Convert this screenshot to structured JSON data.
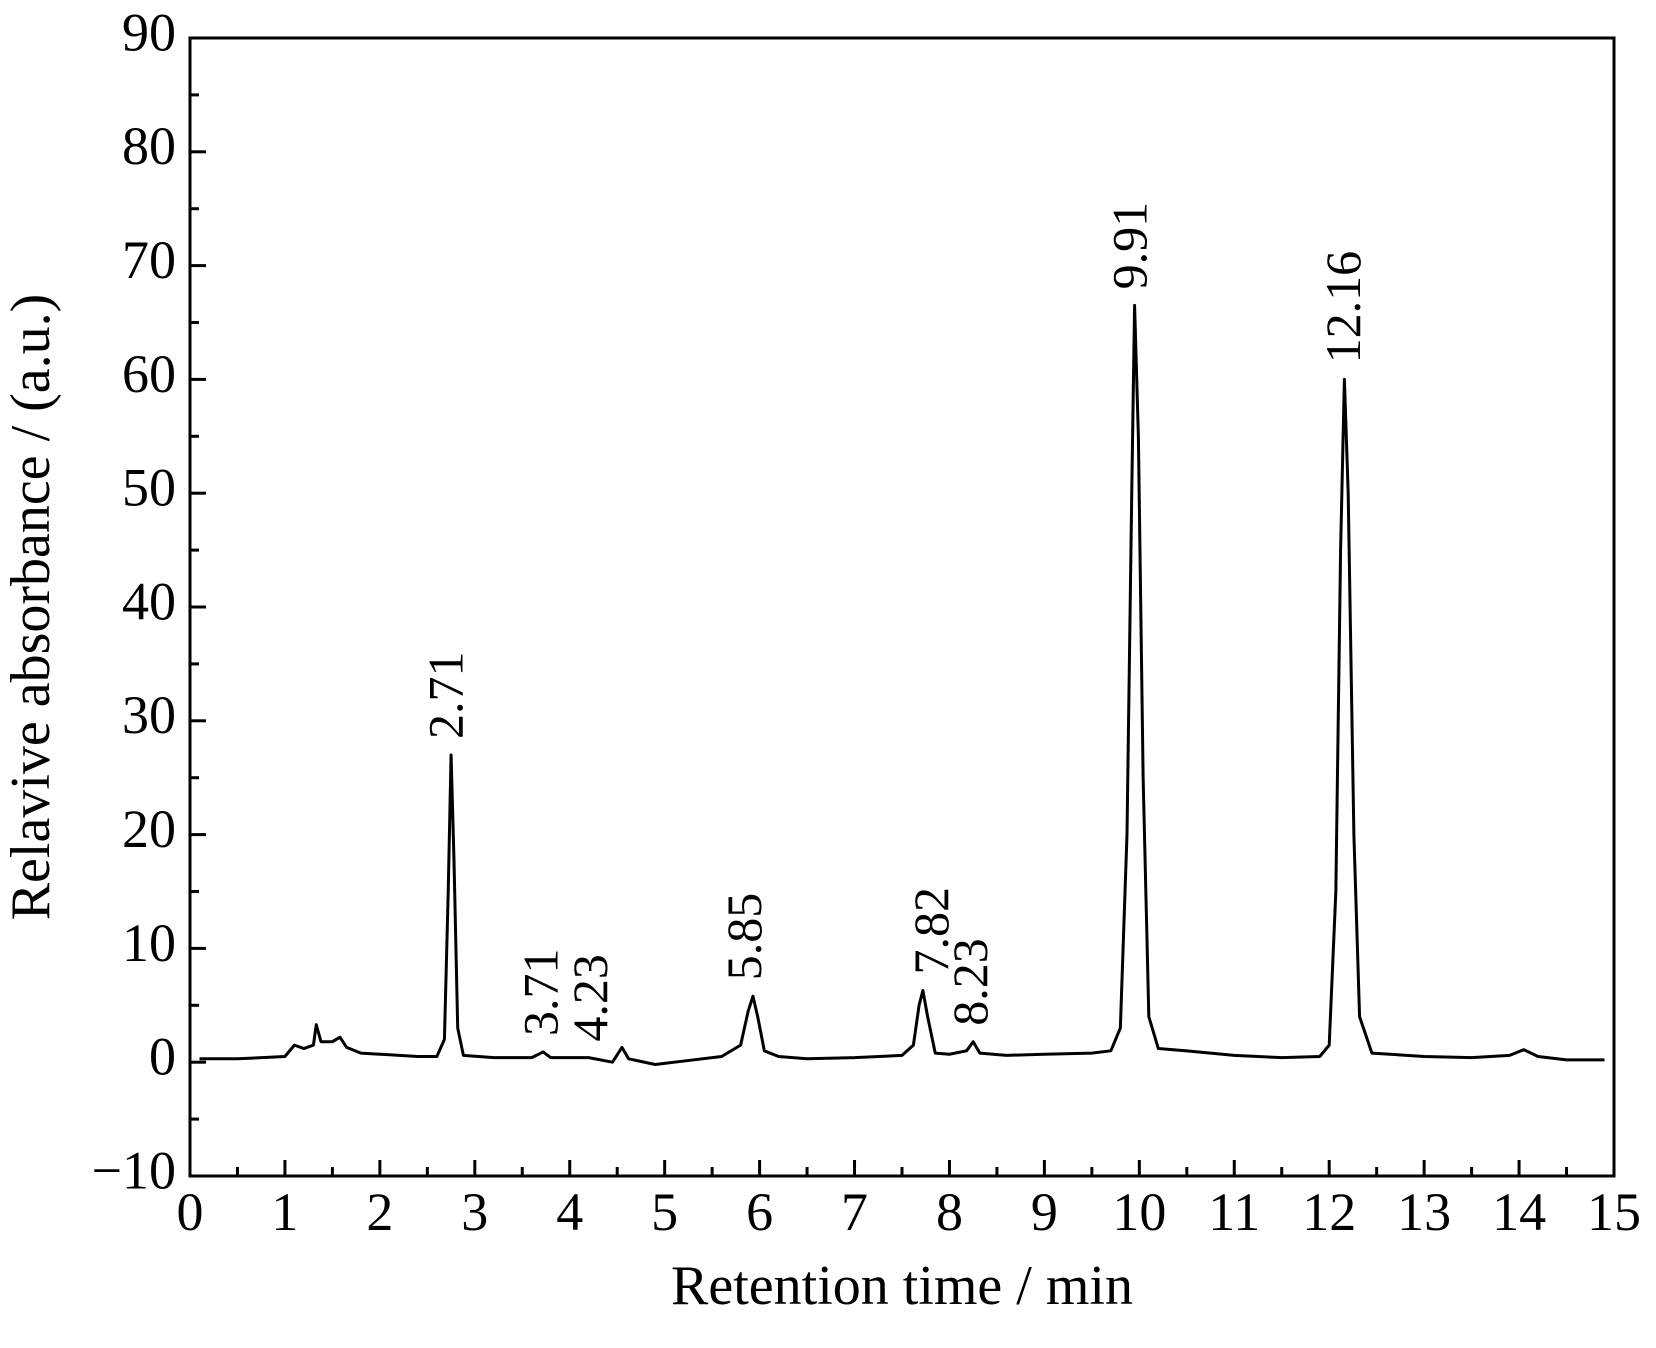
{
  "chart_data": {
    "type": "line",
    "x_label": "Retention time / min",
    "y_label": "Relavive absorbance / (a.u.)",
    "xlim": [
      0,
      15
    ],
    "ylim": [
      -10,
      90
    ],
    "xticks": [
      0,
      1,
      2,
      3,
      4,
      5,
      6,
      7,
      8,
      9,
      10,
      11,
      12,
      13,
      14,
      15
    ],
    "yticks": [
      {
        "value": -10,
        "label": "−10"
      },
      0,
      10,
      20,
      30,
      40,
      50,
      60,
      70,
      80,
      90
    ],
    "series": [
      {
        "color": "#000000",
        "x": [
          0.1,
          0.5,
          1.0,
          1.1,
          1.2,
          1.3,
          1.33,
          1.38,
          1.5,
          1.58,
          1.65,
          1.8,
          2.0,
          2.4,
          2.6,
          2.68,
          2.72,
          2.75,
          2.78,
          2.82,
          2.88,
          3.2,
          3.6,
          3.72,
          3.8,
          4.2,
          4.45,
          4.55,
          4.62,
          4.9,
          5.2,
          5.6,
          5.8,
          5.88,
          5.93,
          5.98,
          6.05,
          6.2,
          6.5,
          7.0,
          7.5,
          7.62,
          7.68,
          7.72,
          7.77,
          7.85,
          8.0,
          8.18,
          8.25,
          8.32,
          8.6,
          9.0,
          9.5,
          9.7,
          9.8,
          9.87,
          9.92,
          9.95,
          9.99,
          10.04,
          10.1,
          10.2,
          10.5,
          11.0,
          11.5,
          11.9,
          12.0,
          12.07,
          12.12,
          12.16,
          12.2,
          12.26,
          12.32,
          12.45,
          13.0,
          13.5,
          13.9,
          14.05,
          14.2,
          14.5,
          14.9
        ],
        "values": [
          0.3,
          0.3,
          0.5,
          1.5,
          1.2,
          1.5,
          3.3,
          1.8,
          1.8,
          2.2,
          1.3,
          0.8,
          0.7,
          0.5,
          0.5,
          2,
          15,
          27,
          18,
          3,
          0.6,
          0.4,
          0.4,
          0.9,
          0.4,
          0.4,
          0,
          1.3,
          0.3,
          -0.2,
          0.1,
          0.5,
          1.5,
          4.5,
          5.8,
          4,
          1,
          0.5,
          0.3,
          0.4,
          0.6,
          1.5,
          5,
          6.3,
          4,
          0.8,
          0.7,
          1,
          1.8,
          0.8,
          0.6,
          0.7,
          0.8,
          1.0,
          3,
          20,
          50,
          66.5,
          55,
          25,
          4,
          1.2,
          1,
          0.6,
          0.4,
          0.5,
          1.5,
          15,
          45,
          60,
          50,
          20,
          4,
          0.8,
          0.5,
          0.4,
          0.6,
          1.1,
          0.5,
          0.2,
          0.2
        ]
      }
    ],
    "annotations": [
      {
        "x": 2.71,
        "label": "2.71"
      },
      {
        "x": 3.71,
        "label": "3.71"
      },
      {
        "x": 4.23,
        "label": "4.23"
      },
      {
        "x": 5.85,
        "label": "5.85"
      },
      {
        "x": 7.82,
        "label": "7.82"
      },
      {
        "x": 8.23,
        "label": "8.23"
      },
      {
        "x": 9.91,
        "label": "9.91"
      },
      {
        "x": 12.16,
        "label": "12.16"
      }
    ]
  }
}
